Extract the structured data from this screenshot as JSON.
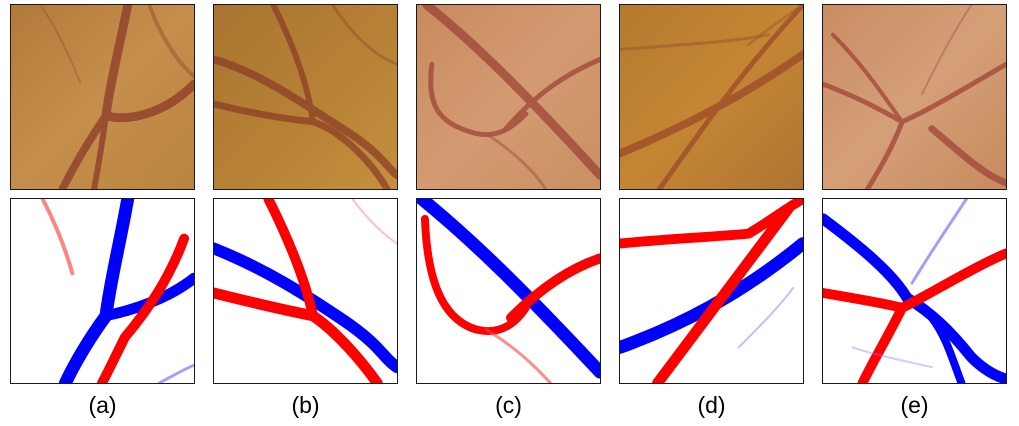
{
  "captions": [
    "(a)",
    "(b)",
    "(c)",
    "(d)",
    "(e)"
  ],
  "colors": {
    "artery": "#ff0000",
    "vein": "#0000ff",
    "fundus_vessel": "#8a3528",
    "border": "#1a1a1a"
  }
}
